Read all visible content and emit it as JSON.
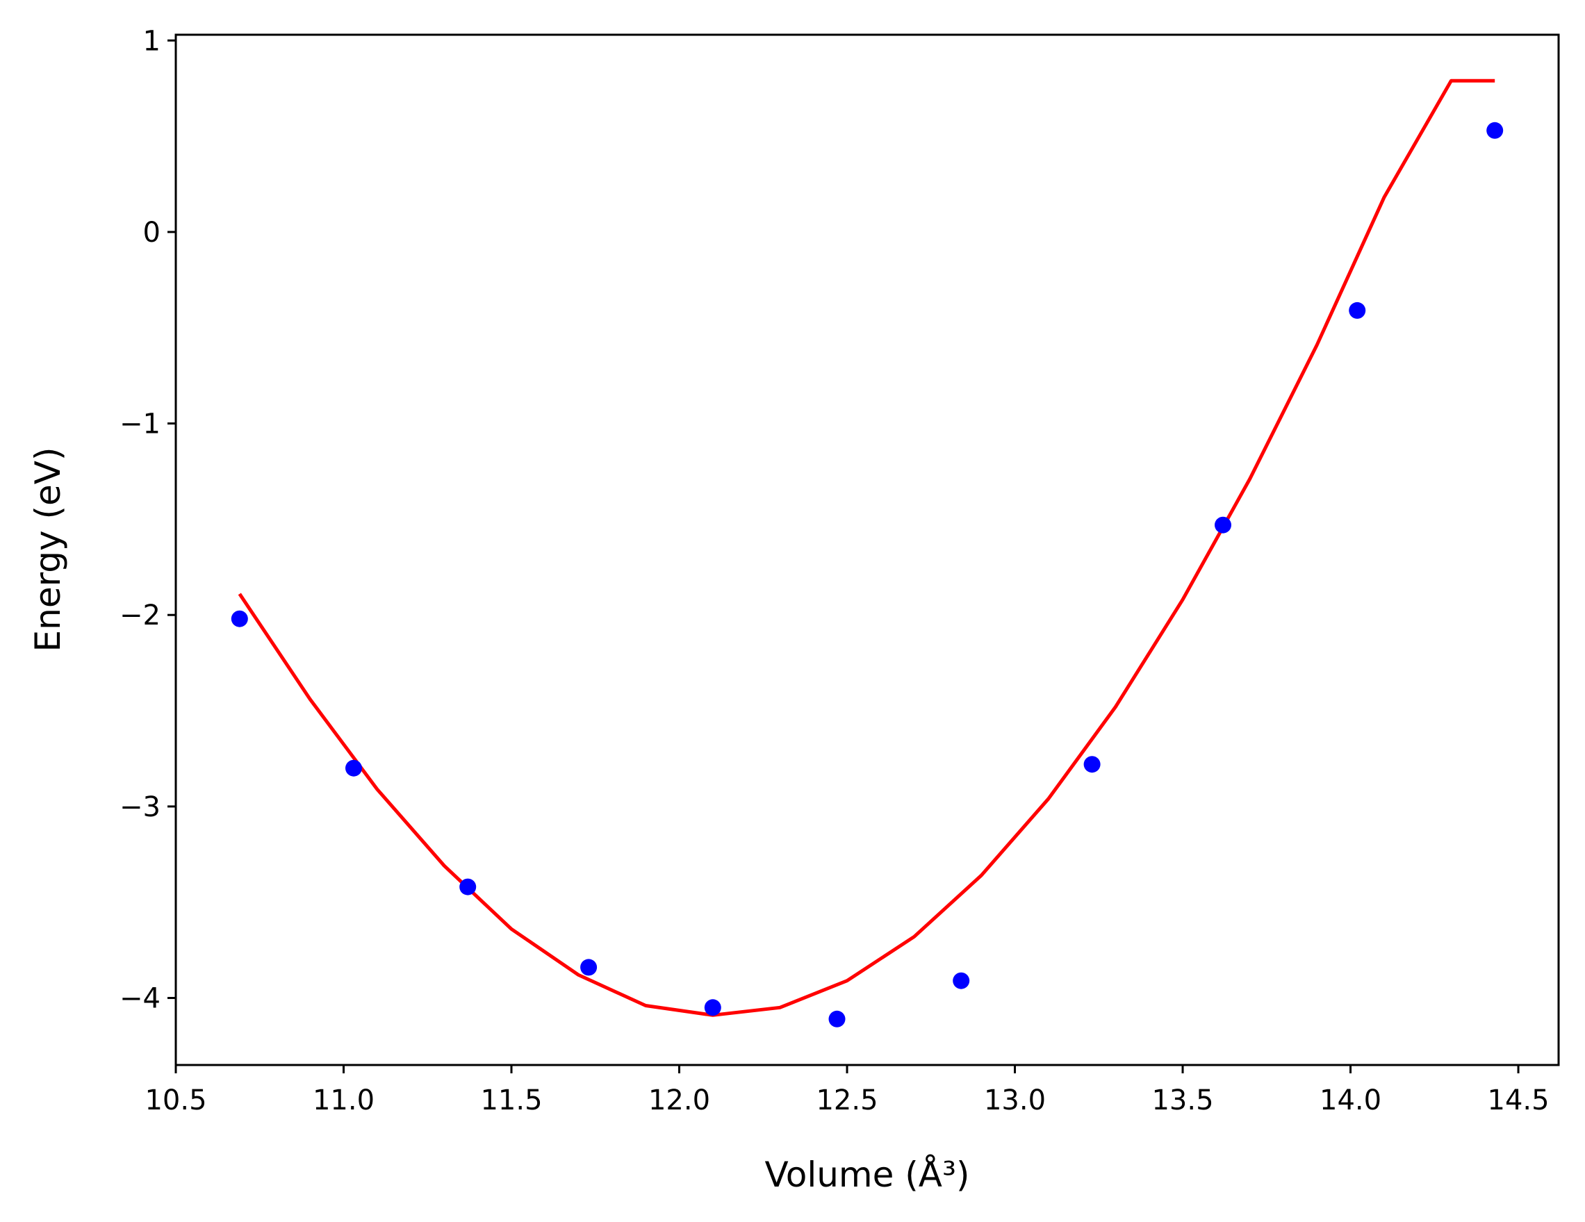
{
  "chart_data": {
    "type": "scatter",
    "title": "",
    "xlabel": "Volume (Å³)",
    "ylabel": "Energy (eV)",
    "xlim": [
      10.5,
      14.62
    ],
    "ylim": [
      -4.35,
      1.03
    ],
    "x_ticks": [
      10.5,
      11.0,
      11.5,
      12.0,
      12.5,
      13.0,
      13.5,
      14.0,
      14.5
    ],
    "x_tick_labels": [
      "10.5",
      "11.0",
      "11.5",
      "12.0",
      "12.5",
      "13.0",
      "13.5",
      "14.0",
      "14.5"
    ],
    "y_ticks": [
      -4,
      -3,
      -2,
      -1,
      0,
      1
    ],
    "y_tick_labels": [
      "−4",
      "−3",
      "−2",
      "−1",
      "0",
      "1"
    ],
    "grid": false,
    "series": [
      {
        "kind": "points",
        "color": "#0000ff",
        "x": [
          10.69,
          11.03,
          11.37,
          11.73,
          12.1,
          12.47,
          12.84,
          13.23,
          13.62,
          14.02,
          14.43
        ],
        "y": [
          -2.02,
          -2.8,
          -3.42,
          -3.84,
          -4.05,
          -4.11,
          -3.91,
          -2.78,
          -1.53,
          -0.41,
          0.53
        ]
      },
      {
        "kind": "fit-curve",
        "color": "#ff0000",
        "x": [
          10.69,
          10.9,
          11.1,
          11.3,
          11.5,
          11.7,
          11.9,
          12.1,
          12.3,
          12.5,
          12.7,
          12.9,
          13.1,
          13.3,
          13.5,
          13.7,
          13.9,
          14.1,
          14.3,
          14.43
        ],
        "y": [
          -1.89,
          -2.44,
          -2.91,
          -3.31,
          -3.64,
          -3.88,
          -4.04,
          -4.09,
          -4.05,
          -3.91,
          -3.68,
          -3.36,
          -2.96,
          -2.48,
          -1.92,
          -1.29,
          -0.59,
          0.18,
          0.79,
          0.79
        ]
      }
    ]
  }
}
